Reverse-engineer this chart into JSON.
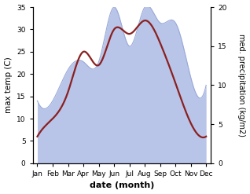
{
  "months": [
    "Jan",
    "Feb",
    "Mar",
    "Apr",
    "May",
    "Jun",
    "Jul",
    "Aug",
    "Sep",
    "Oct",
    "Nov",
    "Dec"
  ],
  "temp": [
    6,
    10,
    16,
    25,
    22,
    30,
    29,
    32,
    27,
    18,
    9,
    6
  ],
  "precip": [
    8,
    8,
    12,
    13,
    13,
    20,
    15,
    20,
    18,
    18,
    11,
    10
  ],
  "temp_color": "#8B2020",
  "precip_fill_color": "#b8c4e8",
  "precip_line_color": "#9aaad8",
  "xlabel": "date (month)",
  "ylabel_left": "max temp (C)",
  "ylabel_right": "med. precipitation (kg/m2)",
  "ylim_left": [
    0,
    35
  ],
  "ylim_right": [
    0,
    20
  ],
  "background_color": "#ffffff",
  "temp_linewidth": 1.6
}
